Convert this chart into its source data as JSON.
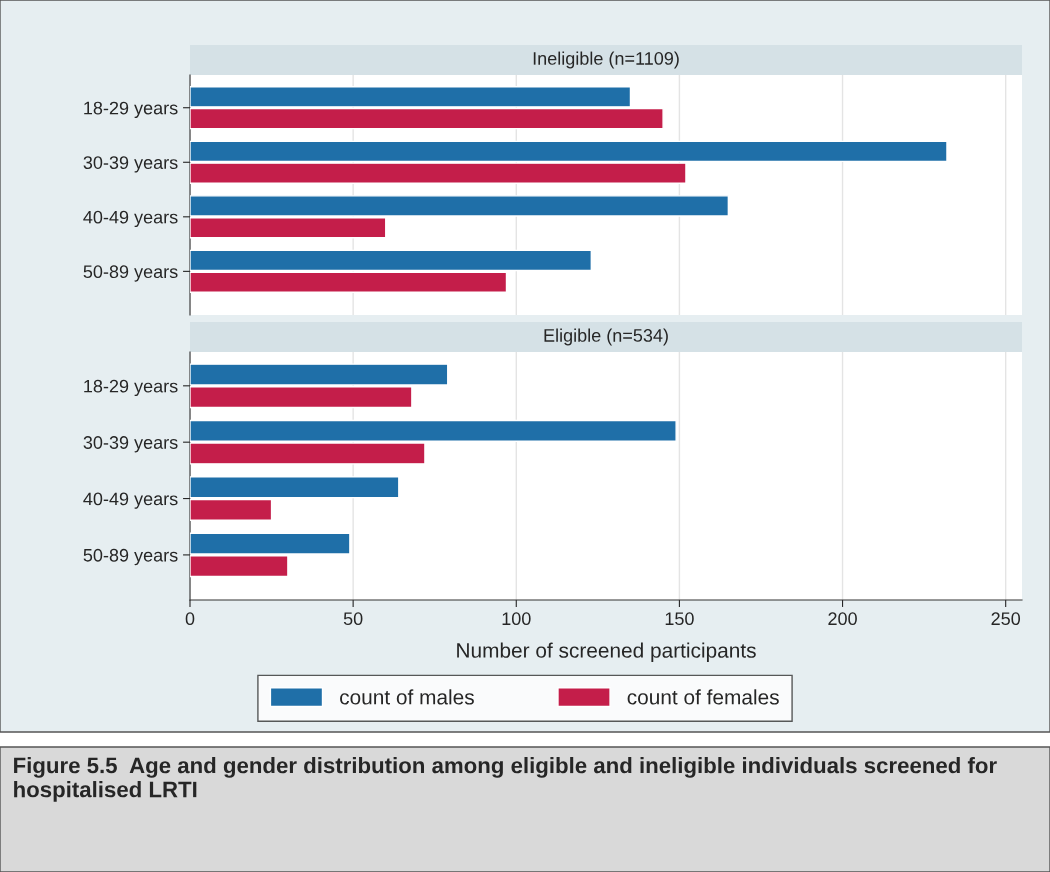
{
  "chart_data": [
    {
      "type": "bar",
      "orientation": "horizontal",
      "title": "Ineligible (n=1109)",
      "categories": [
        "18-29 years",
        "30-39 years",
        "40-49 years",
        "50-89 years"
      ],
      "series": [
        {
          "color": "#1f6fa8",
          "values": [
            135,
            232,
            165,
            123
          ]
        },
        {
          "color": "#c41e4a",
          "values": [
            145,
            152,
            60,
            97
          ]
        }
      ],
      "xlim": [
        0,
        255
      ],
      "xticks": [
        0,
        50,
        100,
        150,
        200,
        250
      ],
      "grid": "x",
      "tick_labels": "y"
    },
    {
      "type": "bar",
      "orientation": "horizontal",
      "title": "Eligible (n=534)",
      "categories": [
        "18-29 years",
        "30-39 years",
        "40-49 years",
        "50-89 years"
      ],
      "series": [
        {
          "name": "count of males",
          "color": "#1f6fa8",
          "values": [
            79,
            149,
            64,
            49
          ]
        },
        {
          "name": "count of females",
          "color": "#c41e4a",
          "values": [
            68,
            72,
            25,
            30
          ]
        }
      ],
      "xlim": [
        0,
        255
      ],
      "xticks": [
        0,
        50,
        100,
        150,
        200,
        250
      ],
      "grid": "x",
      "legend": "bottom",
      "xlabel": "Number of screened participants",
      "annotations": [
        "Figure 5.5  Age and gender distribution among eligible and ineligible individuals screened for hospitalised LRTI"
      ]
    }
  ]
}
